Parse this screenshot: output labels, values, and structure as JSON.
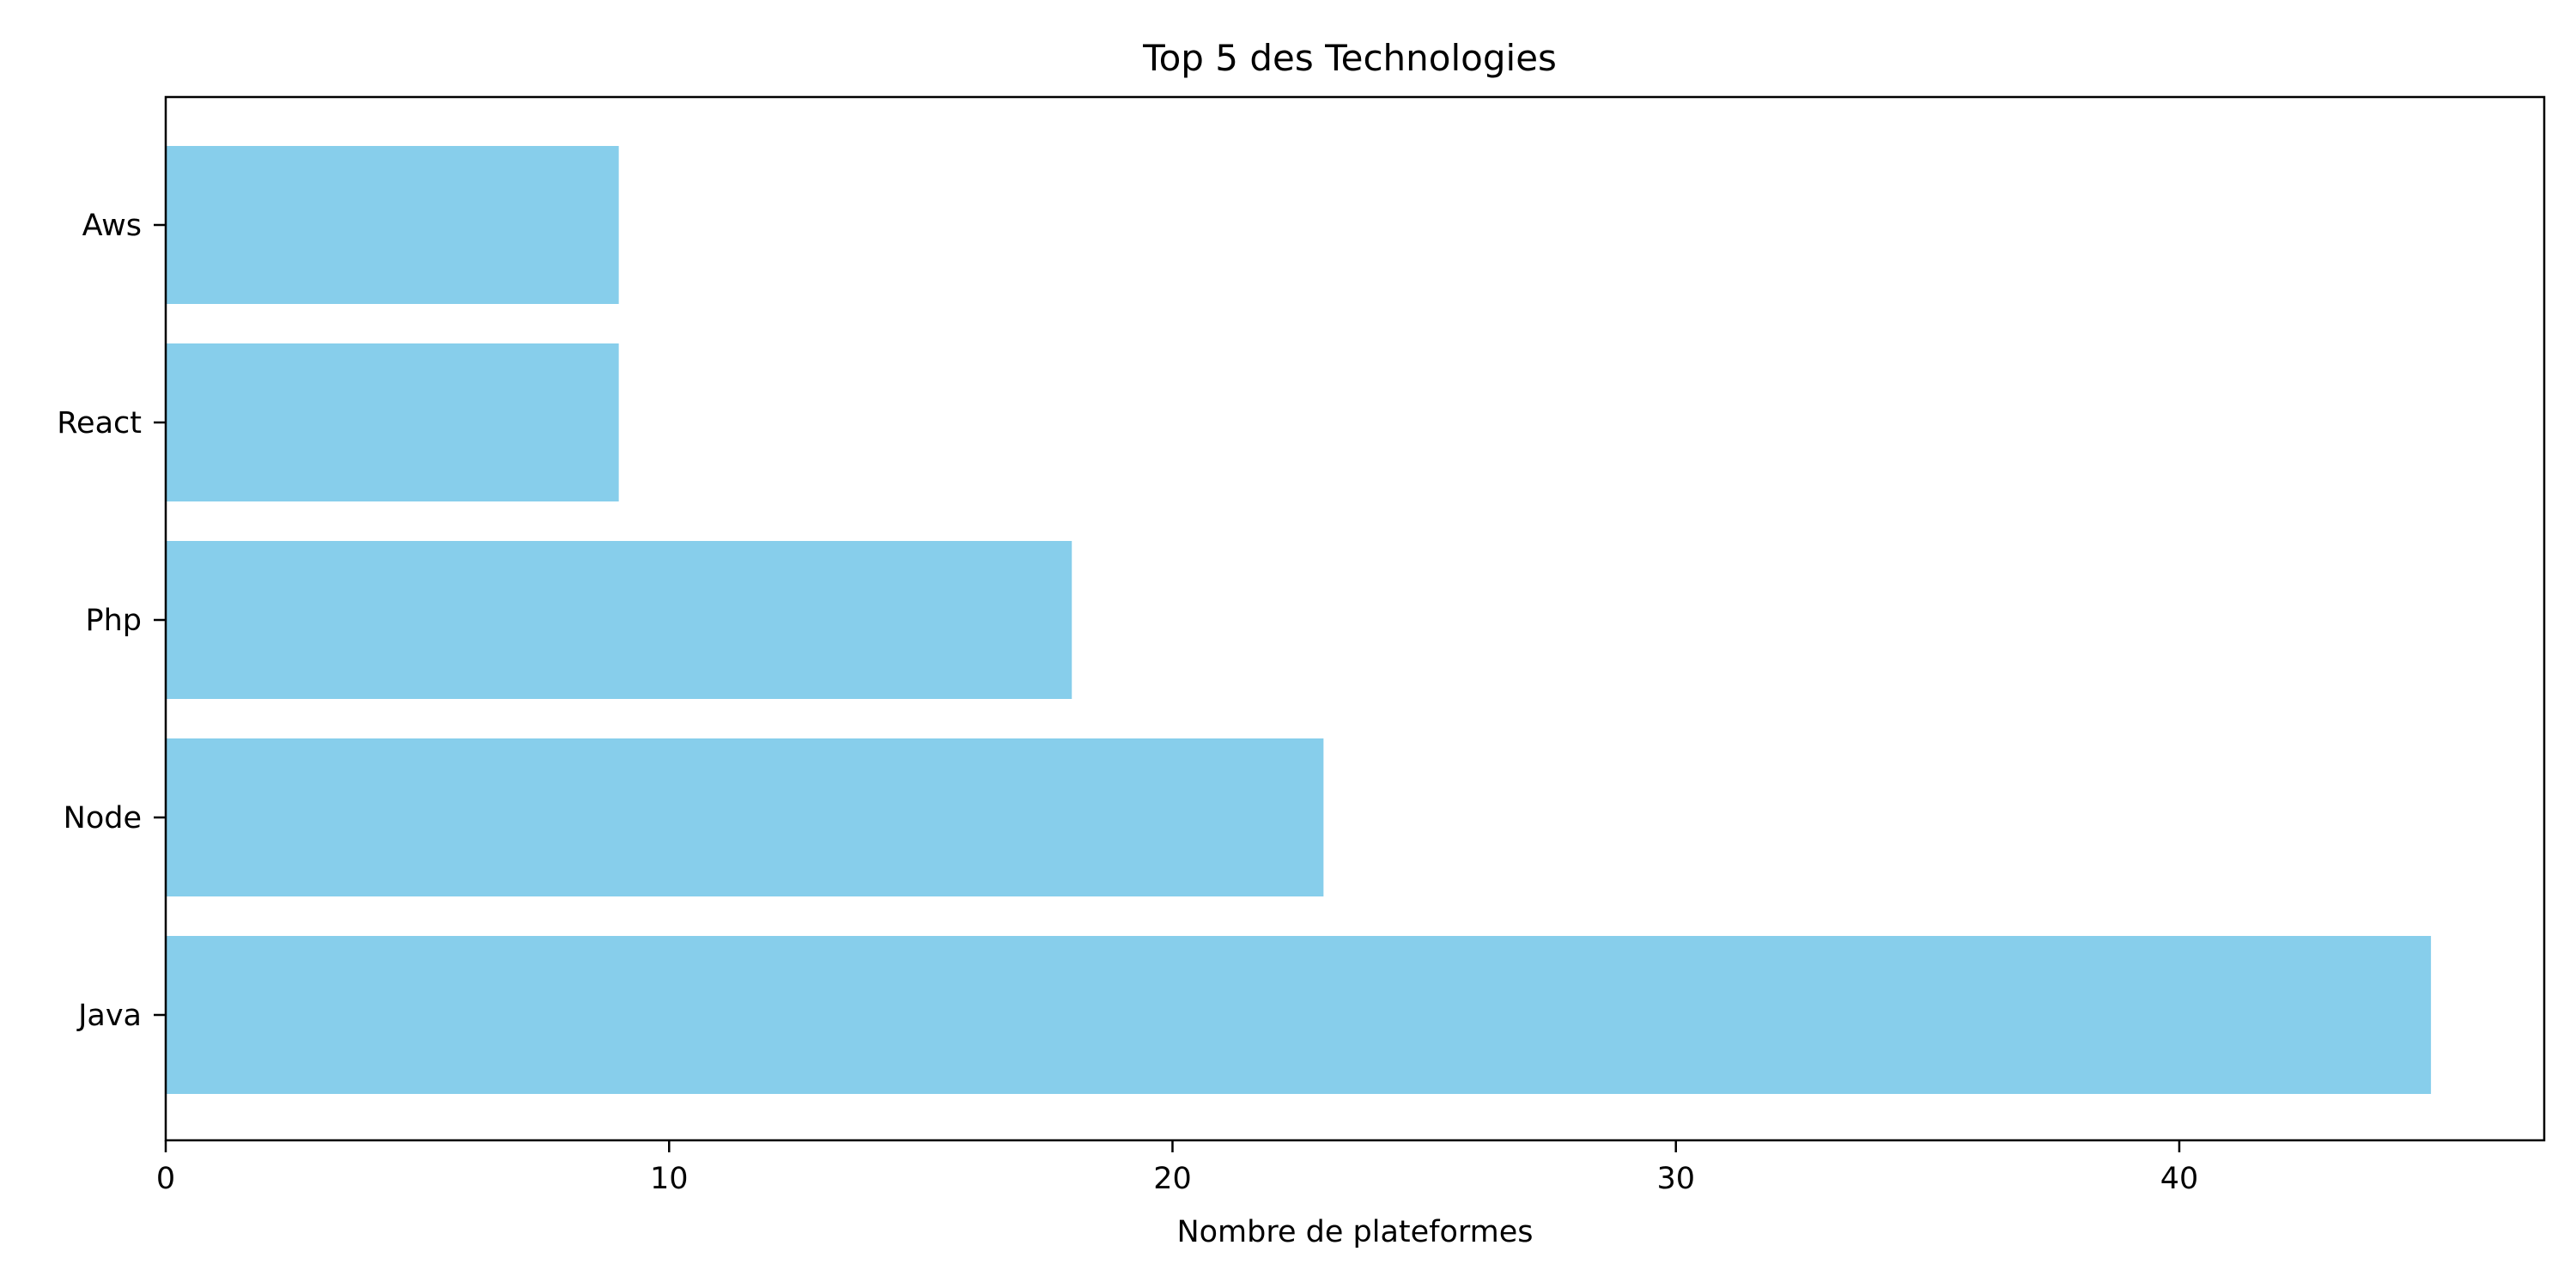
{
  "chart_data": {
    "type": "bar",
    "orientation": "horizontal",
    "title": "Top 5 des Technologies",
    "xlabel": "Nombre de plateformes",
    "ylabel": "",
    "categories": [
      "Java",
      "Node",
      "Php",
      "React",
      "Aws"
    ],
    "values": [
      45,
      23,
      18,
      9,
      9
    ],
    "xlim": [
      0,
      47.25
    ],
    "xticks": [
      0,
      10,
      20,
      30,
      40
    ],
    "bar_color": "#87CEEB",
    "grid": false,
    "legend": "none"
  }
}
